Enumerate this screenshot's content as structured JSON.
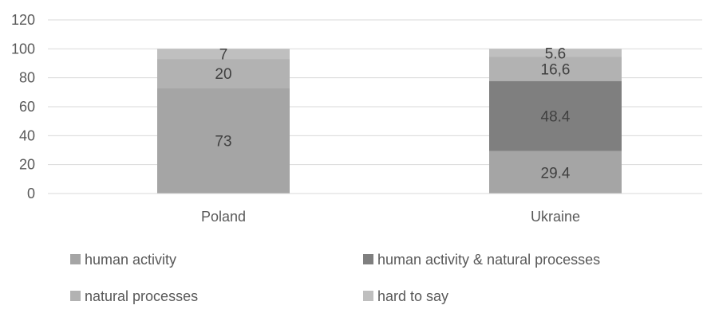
{
  "chart_data": {
    "type": "bar",
    "stacked": true,
    "categories": [
      "Poland",
      "Ukraine"
    ],
    "ylim": [
      0,
      120
    ],
    "yticks": [
      0,
      20,
      40,
      60,
      80,
      100,
      120
    ],
    "grid": true,
    "legend_position": "bottom",
    "series": [
      {
        "name": "human activity",
        "color": "#a5a5a5",
        "values": [
          73,
          29.4
        ],
        "labels": [
          "73",
          "29.4"
        ]
      },
      {
        "name": "human activity & natural processes",
        "color": "#7f7f7f",
        "values": [
          0,
          48.4
        ],
        "labels": [
          "",
          "48.4"
        ]
      },
      {
        "name": "natural processes",
        "color": "#b2b2b2",
        "values": [
          20,
          16.6
        ],
        "labels": [
          "20",
          "16,6"
        ]
      },
      {
        "name": "hard to say",
        "color": "#bfbfbf",
        "values": [
          7,
          5.6
        ],
        "labels": [
          "7",
          "5.6"
        ]
      }
    ]
  }
}
